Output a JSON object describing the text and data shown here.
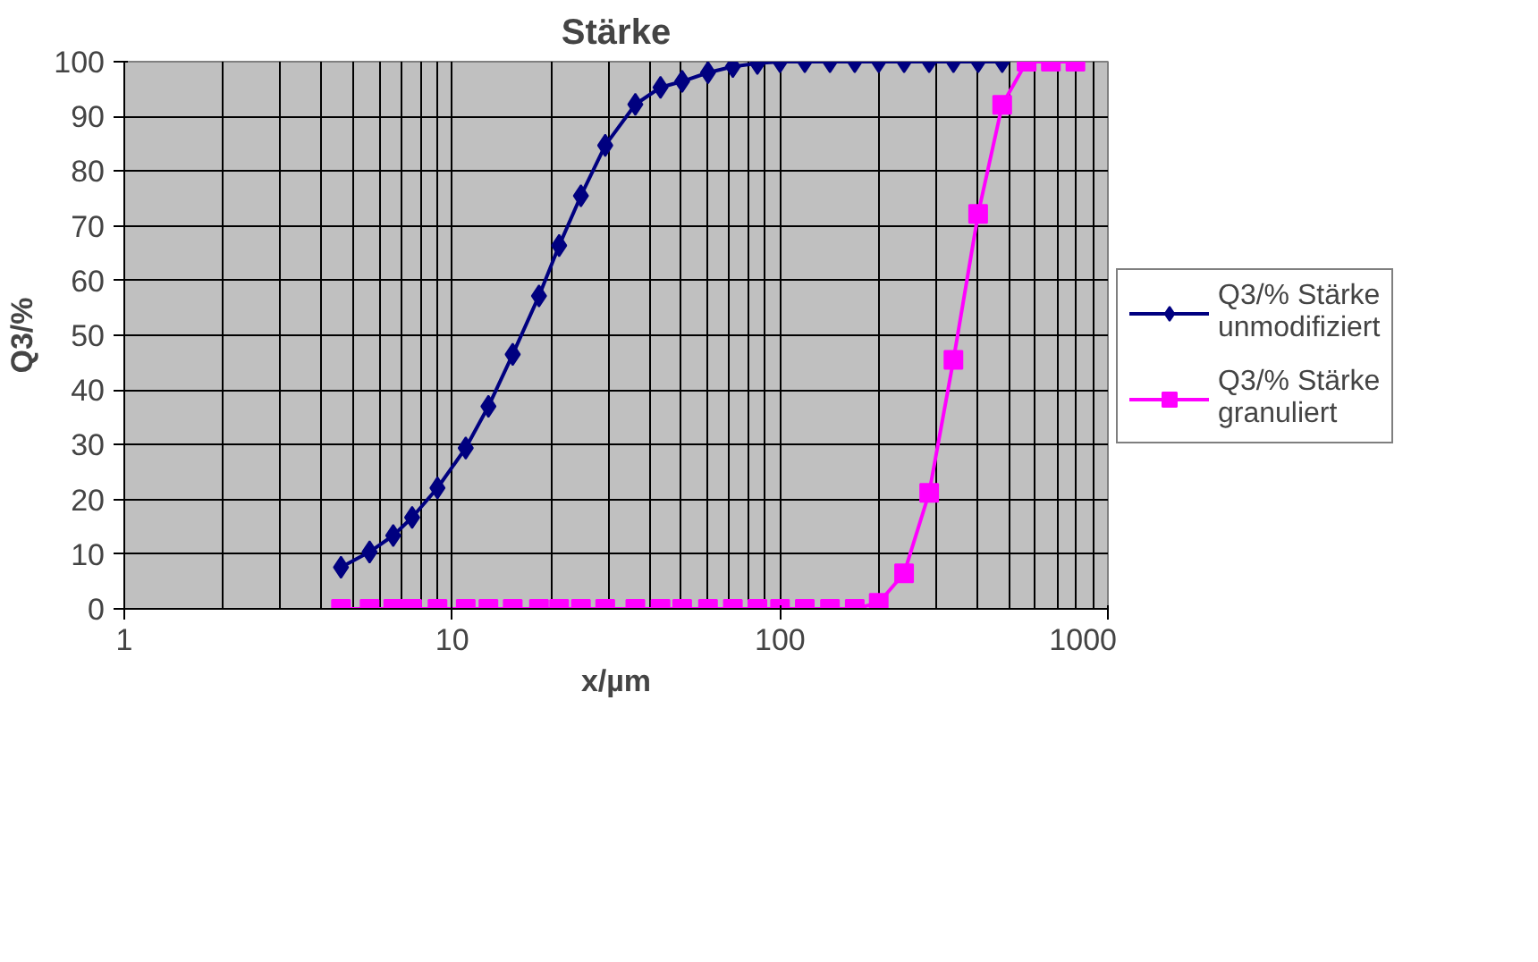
{
  "chart_data": {
    "type": "line",
    "title": "Stärke",
    "xlabel": "x/µm",
    "ylabel": "Q3/%",
    "log": "x",
    "xlim": [
      1,
      1000
    ],
    "xticks": [
      1,
      10,
      100,
      1000
    ],
    "ylim": [
      0,
      100
    ],
    "yticks": [
      0,
      10,
      20,
      30,
      40,
      50,
      60,
      70,
      80,
      90,
      100
    ],
    "grid": true,
    "legend": "right",
    "series": [
      {
        "name": "Q3/% Stärke unmodifiziert",
        "color": "#000080",
        "marker": "diamond",
        "x": [
          4.58,
          5.6,
          6.61,
          7.55,
          9.02,
          11.0,
          12.9,
          15.3,
          18.4,
          21.2,
          24.7,
          29.3,
          36.2,
          43.2,
          50.3,
          60.3,
          71.8,
          85.3,
          100,
          119,
          142,
          169,
          200,
          239,
          285,
          338,
          402,
          476
        ],
        "values": [
          7.6,
          10.4,
          13.4,
          16.7,
          22.1,
          29.4,
          37.0,
          46.5,
          57.2,
          66.4,
          75.5,
          84.7,
          92.2,
          95.3,
          96.4,
          98.0,
          99.1,
          99.7,
          100,
          100,
          100,
          100,
          100,
          100,
          100,
          100,
          100,
          100
        ]
      },
      {
        "name": "Q3/% Stärke granuliert",
        "color": "#ff00ff",
        "marker": "square",
        "x": [
          4.58,
          5.6,
          6.61,
          7.55,
          9.02,
          11.0,
          12.9,
          15.3,
          18.4,
          21.2,
          24.7,
          29.3,
          36.2,
          43.2,
          50.3,
          60.3,
          71.8,
          85.3,
          100,
          119,
          142,
          169,
          200,
          239,
          285,
          338,
          402,
          476,
          565,
          670,
          796
        ],
        "values": [
          0,
          0,
          0,
          0,
          0,
          0,
          0,
          0,
          0,
          0,
          0,
          0,
          0,
          0,
          0,
          0,
          0,
          0,
          0,
          0,
          0,
          0,
          1.1,
          6.5,
          21.2,
          45.5,
          72.2,
          92.1,
          100,
          100,
          100
        ]
      }
    ]
  }
}
